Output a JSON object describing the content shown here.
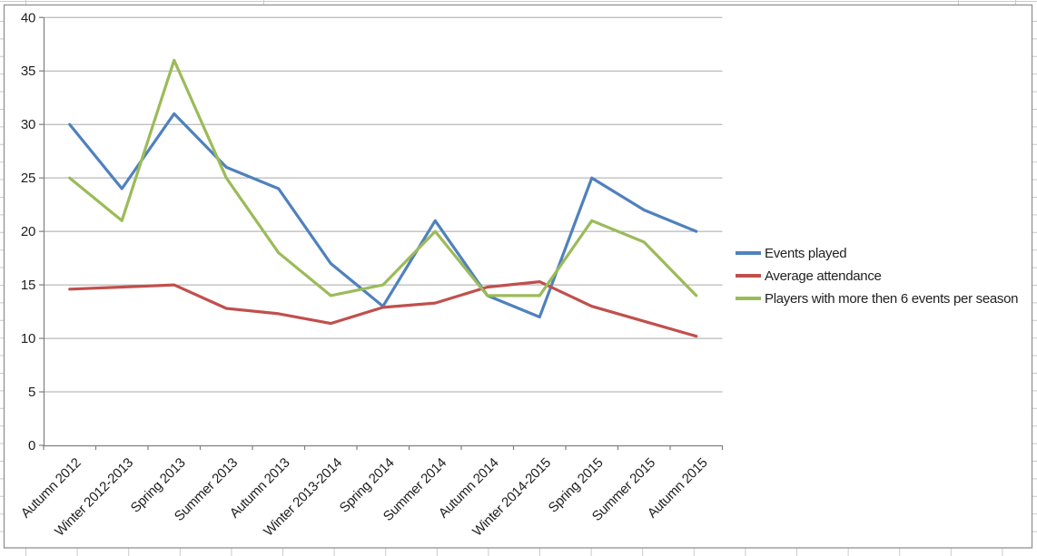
{
  "chart_data": {
    "type": "line",
    "title": "",
    "categories": [
      "Autumn 2012",
      "Winter 2012-2013",
      "Spring 2013",
      "Summer 2013",
      "Autumn 2013",
      "Winter 2013-2014",
      "Spring 2014",
      "Summer 2014",
      "Autumn 2014",
      "Winter 2014-2015",
      "Spring 2015",
      "Summer 2015",
      "Autumn 2015"
    ],
    "series": [
      {
        "name": "Events played",
        "color": "#4F81BD",
        "values": [
          30,
          24,
          31,
          26,
          24,
          17,
          13,
          21,
          14,
          12,
          25,
          22,
          20
        ]
      },
      {
        "name": "Average attendance",
        "color": "#C0504D",
        "values": [
          14.6,
          14.8,
          15,
          12.8,
          12.3,
          11.4,
          12.9,
          13.3,
          14.8,
          15.3,
          13,
          11.6,
          10.2
        ]
      },
      {
        "name": "Players with more then 6 events per season",
        "color": "#9BBB59",
        "values": [
          25,
          21,
          36,
          25,
          18,
          14,
          15,
          20,
          14,
          14,
          21,
          19,
          14
        ]
      }
    ],
    "ylim": [
      0,
      40
    ],
    "ytick_step": 5,
    "ytick_labels": [
      "0",
      "5",
      "10",
      "15",
      "20",
      "25",
      "30",
      "35",
      "40"
    ],
    "xlabel": "",
    "ylabel": "",
    "grid": true,
    "legend_position": "right"
  },
  "colors": {
    "series_blue": "#4F81BD",
    "series_red": "#C0504D",
    "series_green": "#9BBB59",
    "gridline": "#A8A8A8",
    "axis": "#7F7F7F",
    "chart_border": "#929292",
    "sheet_line": "#CBCBCB",
    "label_text": "#1F1F1F"
  }
}
